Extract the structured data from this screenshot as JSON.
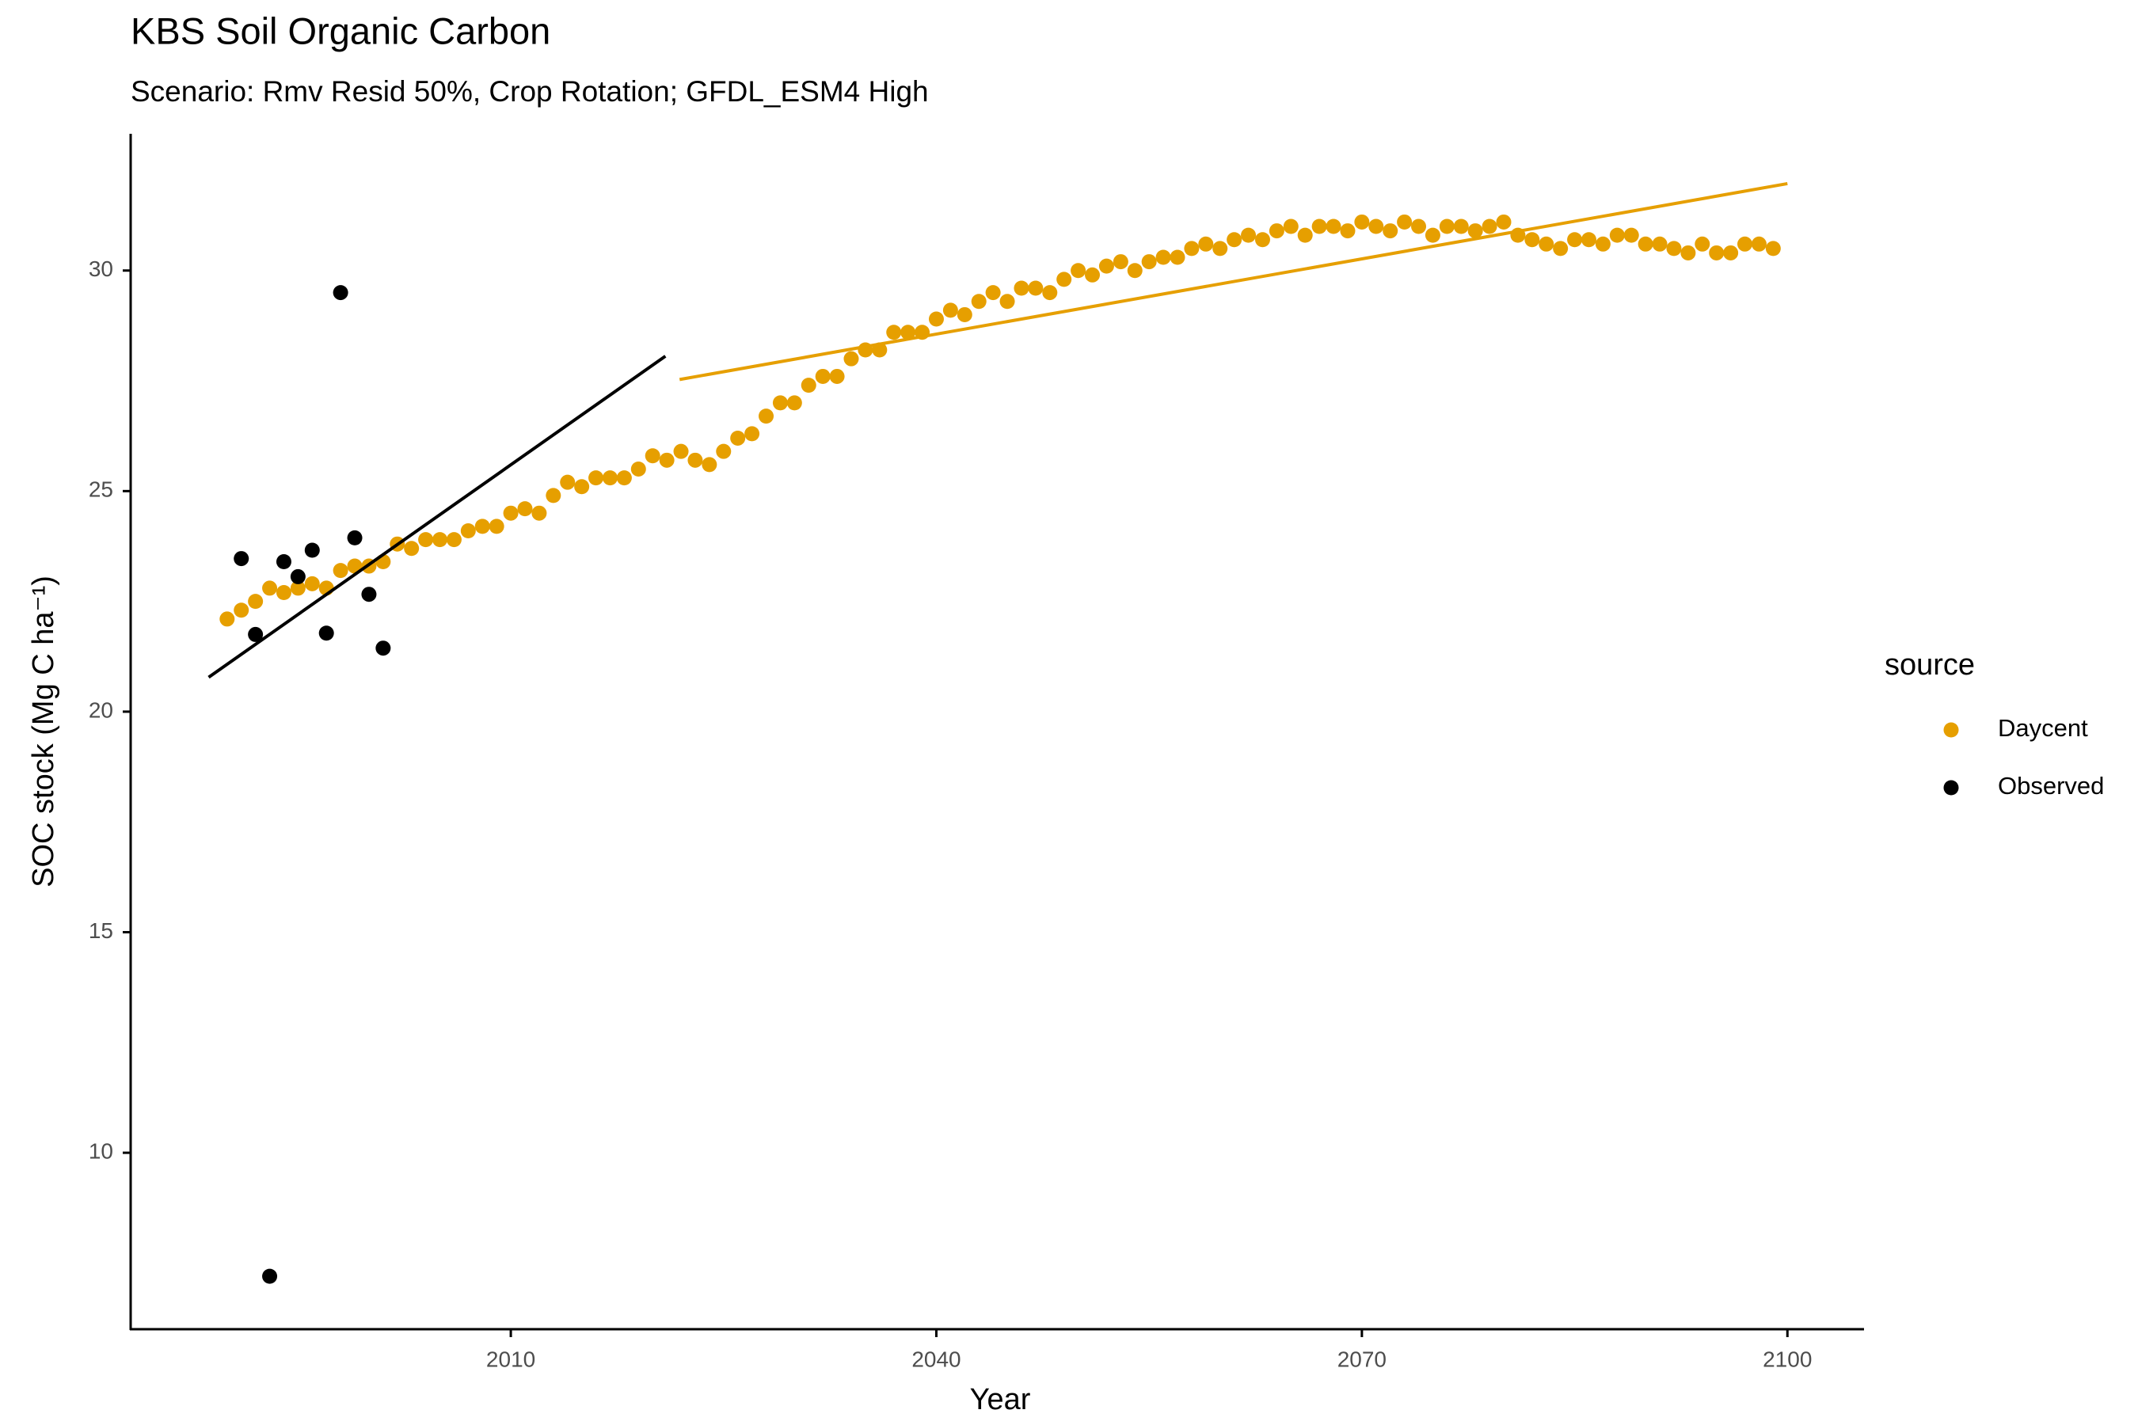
{
  "chart_data": {
    "type": "scatter",
    "title": "KBS Soil Organic Carbon",
    "subtitle": "Scenario: Rmv Resid 50%, Crop Rotation; GFDL_ESM4 High",
    "x_label": "Year",
    "y_label": "SOC stock (Mg C ha⁻¹)",
    "legend_title": "source",
    "legend_position": "right",
    "grid": false,
    "xlim": [
      1983.2,
      2105.4
    ],
    "ylim": [
      6.0,
      33.1
    ],
    "xticks": [
      2010,
      2040,
      2070,
      2100
    ],
    "yticks": [
      10,
      15,
      20,
      25,
      30
    ],
    "series": [
      {
        "name": "Daycent",
        "color": "#E69F00",
        "x": [
          1990,
          1991,
          1992,
          1993,
          1994,
          1995,
          1996,
          1997,
          1998,
          1999,
          2000,
          2001,
          2002,
          2003,
          2004,
          2005,
          2006,
          2007,
          2008,
          2009,
          2010,
          2011,
          2012,
          2013,
          2014,
          2015,
          2016,
          2017,
          2018,
          2019,
          2020,
          2021,
          2022,
          2023,
          2024,
          2025,
          2026,
          2027,
          2028,
          2029,
          2030,
          2031,
          2032,
          2033,
          2034,
          2035,
          2036,
          2037,
          2038,
          2039,
          2040,
          2041,
          2042,
          2043,
          2044,
          2045,
          2046,
          2047,
          2048,
          2049,
          2050,
          2051,
          2052,
          2053,
          2054,
          2055,
          2056,
          2057,
          2058,
          2059,
          2060,
          2061,
          2062,
          2063,
          2064,
          2065,
          2066,
          2067,
          2068,
          2069,
          2070,
          2071,
          2072,
          2073,
          2074,
          2075,
          2076,
          2077,
          2078,
          2079,
          2080,
          2081,
          2082,
          2083,
          2084,
          2085,
          2086,
          2087,
          2088,
          2089,
          2090,
          2091,
          2092,
          2093,
          2094,
          2095,
          2096,
          2097,
          2098,
          2099
        ],
        "values": [
          22.1,
          22.3,
          22.5,
          22.8,
          22.7,
          22.8,
          22.9,
          22.8,
          23.2,
          23.3,
          23.3,
          23.4,
          23.8,
          23.7,
          23.9,
          23.9,
          23.9,
          24.1,
          24.2,
          24.2,
          24.5,
          24.6,
          24.5,
          24.9,
          25.2,
          25.1,
          25.3,
          25.3,
          25.3,
          25.5,
          25.8,
          25.7,
          25.9,
          25.7,
          25.6,
          25.9,
          26.2,
          26.3,
          26.7,
          27.0,
          27.0,
          27.4,
          27.6,
          27.6,
          28.0,
          28.2,
          28.2,
          28.6,
          28.6,
          28.6,
          28.9,
          29.1,
          29.0,
          29.3,
          29.5,
          29.3,
          29.6,
          29.6,
          29.5,
          29.8,
          30.0,
          29.9,
          30.1,
          30.2,
          30.0,
          30.2,
          30.3,
          30.3,
          30.5,
          30.6,
          30.5,
          30.7,
          30.8,
          30.7,
          30.9,
          31.0,
          30.8,
          31.0,
          31.0,
          30.9,
          31.1,
          31.0,
          30.9,
          31.1,
          31.0,
          30.8,
          31.0,
          31.0,
          30.9,
          31.0,
          31.1,
          30.8,
          30.7,
          30.6,
          30.5,
          30.7,
          30.7,
          30.6,
          30.8,
          30.8,
          30.6,
          30.6,
          30.5,
          30.4,
          30.6,
          30.4,
          30.4,
          30.6,
          30.6,
          30.5
        ],
        "trend": {
          "x": [
            2021.9,
            2100
          ],
          "values": [
            27.53,
            31.97
          ]
        }
      },
      {
        "name": "Observed",
        "color": "#000000",
        "x": [
          1991,
          1992,
          1993,
          1994,
          1995,
          1996,
          1997,
          1998,
          1999,
          2000,
          2001
        ],
        "values": [
          23.47,
          21.75,
          7.2,
          23.4,
          23.06,
          23.66,
          21.78,
          29.5,
          23.94,
          22.66,
          21.44
        ],
        "trend": {
          "x": [
            1988.7,
            2020.9
          ],
          "values": [
            20.78,
            28.06
          ]
        }
      }
    ]
  }
}
